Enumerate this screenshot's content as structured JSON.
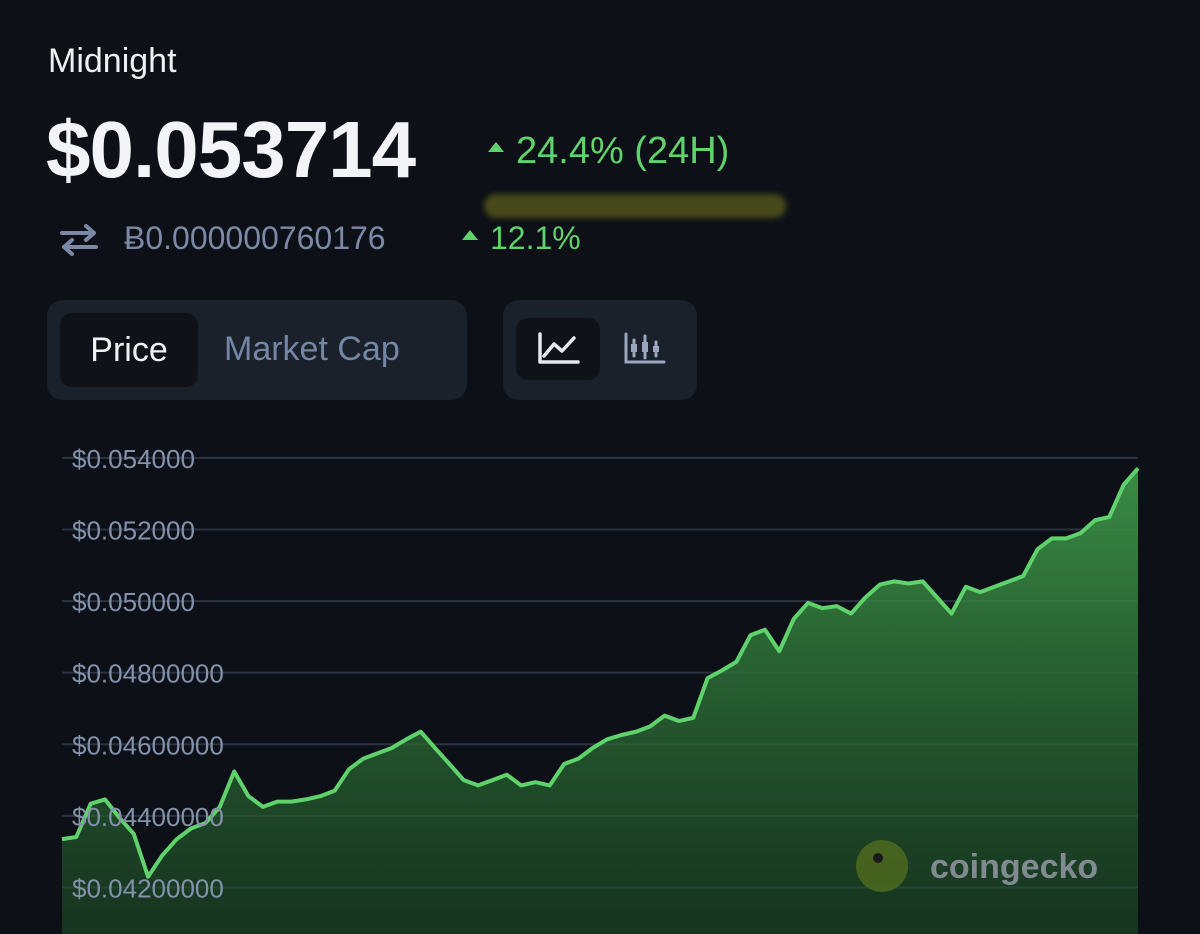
{
  "header": {
    "name": "Midnight",
    "price": "$0.053714",
    "change": "24.4% (24H)",
    "btc_price": "Ƀ0.000000760176",
    "btc_change": "12.1%"
  },
  "tabs": [
    "Price",
    "Market Cap"
  ],
  "watermark": "coingecko",
  "chart_data": {
    "type": "area",
    "color": "#5fd26c",
    "grid": true,
    "ylim": [
      0.0407,
      0.0545
    ],
    "yticks": [
      {
        "value": 0.054,
        "label": "$0.054000"
      },
      {
        "value": 0.052,
        "label": "$0.052000"
      },
      {
        "value": 0.05,
        "label": "$0.050000"
      },
      {
        "value": 0.048,
        "label": "$0.04800000"
      },
      {
        "value": 0.046,
        "label": "$0.04600000"
      },
      {
        "value": 0.044,
        "label": "$0.04400000"
      },
      {
        "value": 0.042,
        "label": "$0.04200000"
      }
    ],
    "values": [
      0.04335,
      0.04341,
      0.04434,
      0.04446,
      0.04395,
      0.0435,
      0.0423,
      0.0429,
      0.04335,
      0.04365,
      0.0438,
      0.04425,
      0.04524,
      0.04455,
      0.04425,
      0.0444,
      0.0444,
      0.04446,
      0.04455,
      0.0447,
      0.0453,
      0.0456,
      0.04575,
      0.0459,
      0.04614,
      0.04635,
      0.0459,
      0.04545,
      0.045,
      0.04485,
      0.045,
      0.04515,
      0.04485,
      0.04494,
      0.04485,
      0.04545,
      0.0456,
      0.0459,
      0.04614,
      0.04626,
      0.04635,
      0.0465,
      0.0468,
      0.04665,
      0.04674,
      0.04785,
      0.04806,
      0.0483,
      0.04905,
      0.0492,
      0.0486,
      0.0495,
      0.04995,
      0.0498,
      0.04986,
      0.04965,
      0.0501,
      0.05046,
      0.05055,
      0.05049,
      0.05055,
      0.0501,
      0.04965,
      0.0504,
      0.05025,
      0.0504,
      0.05055,
      0.0507,
      0.05145,
      0.05175,
      0.05175,
      0.0519,
      0.05226,
      0.05235,
      0.05325,
      0.05371
    ]
  }
}
